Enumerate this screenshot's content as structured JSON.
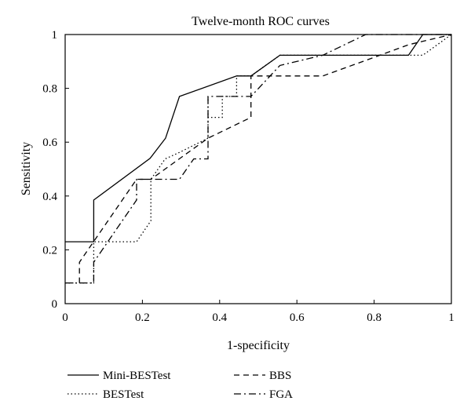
{
  "chart_data": {
    "type": "line",
    "title": "Twelve-month ROC curves",
    "xlabel": "1-specificity",
    "ylabel": "Sensitivity",
    "xlim": [
      0,
      1
    ],
    "ylim": [
      0,
      1
    ],
    "xticks": [
      "0",
      "0.2",
      "0.4",
      "0.6",
      "0.8",
      "1"
    ],
    "yticks": [
      "0",
      "0.2",
      "0.4",
      "0.6",
      "0.8",
      "1"
    ],
    "grid": false,
    "legend_position": "bottom",
    "series": [
      {
        "name": "Mini-BESTest",
        "dash": "solid",
        "points": [
          [
            0,
            0.23
          ],
          [
            0.074,
            0.23
          ],
          [
            0.074,
            0.385
          ],
          [
            0.22,
            0.54
          ],
          [
            0.26,
            0.615
          ],
          [
            0.296,
            0.77
          ],
          [
            0.444,
            0.846
          ],
          [
            0.481,
            0.846
          ],
          [
            0.556,
            0.923
          ],
          [
            0.889,
            0.923
          ],
          [
            0.926,
            1
          ],
          [
            1,
            1
          ]
        ]
      },
      {
        "name": "BESTest",
        "dash": "dotted",
        "points": [
          [
            0,
            0.077
          ],
          [
            0.074,
            0.077
          ],
          [
            0.074,
            0.23
          ],
          [
            0.185,
            0.23
          ],
          [
            0.222,
            0.308
          ],
          [
            0.222,
            0.462
          ],
          [
            0.259,
            0.538
          ],
          [
            0.296,
            0.562
          ],
          [
            0.37,
            0.615
          ],
          [
            0.37,
            0.77
          ],
          [
            0.37,
            0.692
          ],
          [
            0.407,
            0.692
          ],
          [
            0.407,
            0.77
          ],
          [
            0.444,
            0.77
          ],
          [
            0.444,
            0.846
          ],
          [
            0.481,
            0.846
          ],
          [
            0.556,
            0.923
          ],
          [
            0.889,
            0.923
          ],
          [
            0.926,
            0.923
          ],
          [
            1,
            1
          ]
        ]
      },
      {
        "name": "BBS",
        "dash": "dashed",
        "points": [
          [
            0.037,
            0.077
          ],
          [
            0.037,
            0.154
          ],
          [
            0.185,
            0.462
          ],
          [
            0.222,
            0.462
          ],
          [
            0.37,
            0.615
          ],
          [
            0.481,
            0.692
          ],
          [
            0.481,
            0.846
          ],
          [
            0.667,
            0.846
          ],
          [
            0.815,
            0.923
          ],
          [
            0.889,
            0.962
          ],
          [
            1,
            1
          ]
        ]
      },
      {
        "name": "FGA",
        "dash": "dashdot",
        "points": [
          [
            0,
            0.077
          ],
          [
            0.074,
            0.077
          ],
          [
            0.074,
            0.154
          ],
          [
            0.185,
            0.385
          ],
          [
            0.185,
            0.462
          ],
          [
            0.296,
            0.462
          ],
          [
            0.333,
            0.538
          ],
          [
            0.37,
            0.538
          ],
          [
            0.37,
            0.77
          ],
          [
            0.444,
            0.77
          ],
          [
            0.481,
            0.77
          ],
          [
            0.556,
            0.885
          ],
          [
            0.667,
            0.923
          ],
          [
            0.778,
            1
          ],
          [
            1,
            1
          ]
        ]
      }
    ]
  }
}
